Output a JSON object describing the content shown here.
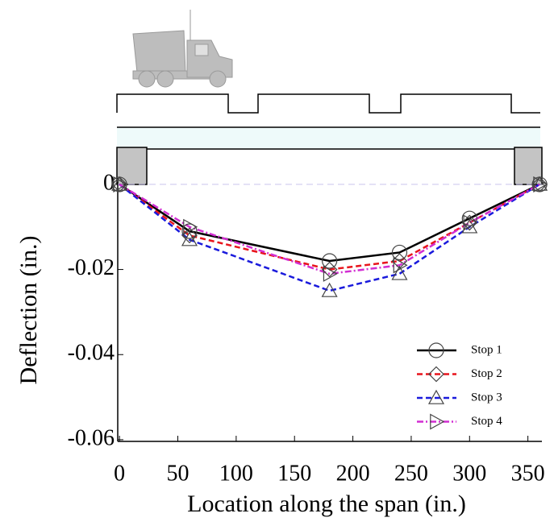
{
  "chart_data": {
    "type": "line",
    "x_label": "Location along the span (in.)",
    "y_label": "Deflection (in.)",
    "x": [
      0,
      60,
      180,
      240,
      300,
      360
    ],
    "series": [
      {
        "name": "Stop 1",
        "color": "#000000",
        "dash": "solid",
        "marker": "circle",
        "values": [
          0,
          -0.011,
          -0.018,
          -0.016,
          -0.008,
          0
        ]
      },
      {
        "name": "Stop 2",
        "color": "#e8141c",
        "dash": "dashed",
        "marker": "diamond",
        "values": [
          0,
          -0.012,
          -0.02,
          -0.018,
          -0.009,
          0
        ]
      },
      {
        "name": "Stop 3",
        "color": "#1a1adc",
        "dash": "dashed",
        "marker": "triangle-up",
        "values": [
          0,
          -0.013,
          -0.025,
          -0.021,
          -0.01,
          0
        ]
      },
      {
        "name": "Stop 4",
        "color": "#d22ed2",
        "dash": "dashdot",
        "marker": "triangle-right",
        "values": [
          0,
          -0.01,
          -0.021,
          -0.019,
          -0.009,
          0
        ]
      }
    ],
    "xlim": [
      -1.5,
      362
    ],
    "xticks": [
      0,
      50,
      100,
      150,
      200,
      250,
      300,
      350
    ],
    "ylim": [
      -0.0604,
      0.0015
    ],
    "yticks": [
      0,
      -0.02,
      -0.04,
      -0.06
    ],
    "legend": "lower right"
  }
}
